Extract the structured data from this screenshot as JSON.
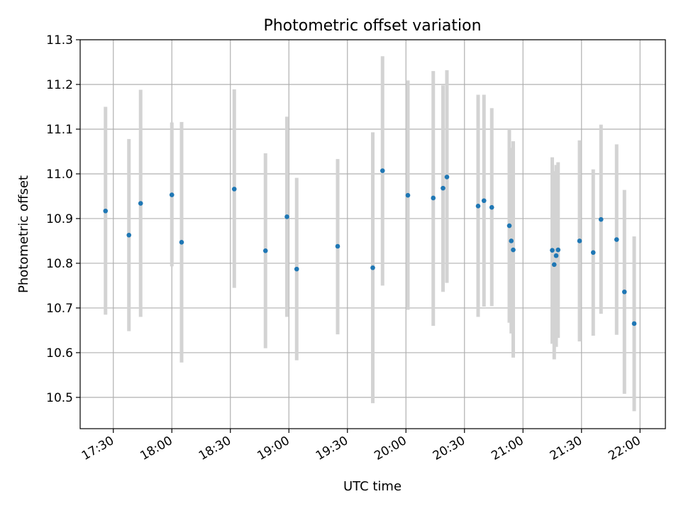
{
  "chart_data": {
    "type": "scatter",
    "title": "Photometric offset variation",
    "xlabel": "UTC time",
    "ylabel": "Photometric offset",
    "xlim": [
      "17:13",
      "22:13"
    ],
    "ylim": [
      10.43,
      11.3
    ],
    "grid": true,
    "x_ticks": [
      "17:30",
      "18:00",
      "18:30",
      "19:00",
      "19:30",
      "20:00",
      "20:30",
      "21:00",
      "21:30",
      "22:00"
    ],
    "y_ticks": [
      "10.5",
      "10.6",
      "10.7",
      "10.8",
      "10.9",
      "11.0",
      "11.1",
      "11.2",
      "11.3"
    ],
    "colors": {
      "marker": "#1f77b4",
      "errorbar": "#d3d3d3",
      "grid": "#b0b0b0"
    },
    "series": [
      {
        "points": [
          {
            "t": "17:26",
            "y": 10.917,
            "lo": 10.685,
            "hi": 11.15
          },
          {
            "t": "17:38",
            "y": 10.863,
            "lo": 10.648,
            "hi": 11.078
          },
          {
            "t": "17:44",
            "y": 10.934,
            "lo": 10.68,
            "hi": 11.188
          },
          {
            "t": "18:00",
            "y": 10.953,
            "lo": 10.793,
            "hi": 11.115
          },
          {
            "t": "18:05",
            "y": 10.847,
            "lo": 10.578,
            "hi": 11.116
          },
          {
            "t": "18:32",
            "y": 10.966,
            "lo": 10.745,
            "hi": 11.189
          },
          {
            "t": "18:48",
            "y": 10.828,
            "lo": 10.61,
            "hi": 11.046
          },
          {
            "t": "18:59",
            "y": 10.904,
            "lo": 10.68,
            "hi": 11.128
          },
          {
            "t": "19:04",
            "y": 10.787,
            "lo": 10.583,
            "hi": 10.991
          },
          {
            "t": "19:25",
            "y": 10.838,
            "lo": 10.641,
            "hi": 11.033
          },
          {
            "t": "19:43",
            "y": 10.79,
            "lo": 10.487,
            "hi": 11.093
          },
          {
            "t": "19:48",
            "y": 11.007,
            "lo": 10.75,
            "hi": 11.263
          },
          {
            "t": "20:01",
            "y": 10.952,
            "lo": 10.696,
            "hi": 11.209
          },
          {
            "t": "20:14",
            "y": 10.946,
            "lo": 10.66,
            "hi": 11.23
          },
          {
            "t": "20:19",
            "y": 10.968,
            "lo": 10.736,
            "hi": 11.198
          },
          {
            "t": "20:21",
            "y": 10.993,
            "lo": 10.756,
            "hi": 11.232
          },
          {
            "t": "20:37",
            "y": 10.928,
            "lo": 10.68,
            "hi": 11.177
          },
          {
            "t": "20:40",
            "y": 10.94,
            "lo": 10.703,
            "hi": 11.177
          },
          {
            "t": "20:44",
            "y": 10.925,
            "lo": 10.704,
            "hi": 11.147
          },
          {
            "t": "20:53",
            "y": 10.884,
            "lo": 10.667,
            "hi": 11.1
          },
          {
            "t": "20:54",
            "y": 10.85,
            "lo": 10.643,
            "hi": 11.058
          },
          {
            "t": "20:55",
            "y": 10.83,
            "lo": 10.589,
            "hi": 11.073
          },
          {
            "t": "21:15",
            "y": 10.829,
            "lo": 10.62,
            "hi": 11.037
          },
          {
            "t": "21:16",
            "y": 10.797,
            "lo": 10.585,
            "hi": 11.006
          },
          {
            "t": "21:17",
            "y": 10.817,
            "lo": 10.613,
            "hi": 11.02
          },
          {
            "t": "21:18",
            "y": 10.83,
            "lo": 10.633,
            "hi": 11.026
          },
          {
            "t": "21:29",
            "y": 10.85,
            "lo": 10.625,
            "hi": 11.075
          },
          {
            "t": "21:36",
            "y": 10.824,
            "lo": 10.638,
            "hi": 11.01
          },
          {
            "t": "21:40",
            "y": 10.898,
            "lo": 10.687,
            "hi": 11.11
          },
          {
            "t": "21:48",
            "y": 10.853,
            "lo": 10.64,
            "hi": 11.066
          },
          {
            "t": "21:52",
            "y": 10.736,
            "lo": 10.508,
            "hi": 10.964
          },
          {
            "t": "21:57",
            "y": 10.665,
            "lo": 10.469,
            "hi": 10.86
          }
        ]
      }
    ]
  }
}
